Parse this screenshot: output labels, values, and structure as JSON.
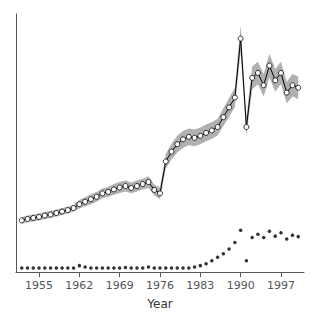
{
  "chart_data": {
    "type": "line",
    "xlabel": "Year",
    "x": [
      1952,
      1953,
      1954,
      1955,
      1956,
      1957,
      1958,
      1959,
      1960,
      1961,
      1962,
      1963,
      1964,
      1965,
      1966,
      1967,
      1968,
      1969,
      1970,
      1971,
      1972,
      1973,
      1974,
      1975,
      1976,
      1977,
      1978,
      1979,
      1980,
      1981,
      1982,
      1983,
      1984,
      1985,
      1986,
      1987,
      1988,
      1989,
      1990,
      1991,
      1992,
      1993,
      1994,
      1995,
      1996,
      1997,
      1998,
      1999,
      2000
    ],
    "xlim": [
      1951,
      2001
    ],
    "xticks": [
      1955,
      1962,
      1969,
      1976,
      1983,
      1990,
      1997
    ],
    "ylim": [
      -5,
      520
    ],
    "tick_labels": "x",
    "grid": false,
    "series": [
      {
        "type": "band",
        "color": "#b0b0b0",
        "lower": [
          93,
          96,
          98,
          100,
          103,
          105,
          108,
          111,
          114,
          118,
          124,
          129,
          133,
          138,
          145,
          148,
          152,
          156,
          159,
          155,
          159,
          163,
          166,
          151,
          143,
          205,
          224,
          238,
          248,
          253,
          251,
          255,
          261,
          266,
          273,
          292,
          311,
          330,
          443,
          271,
          367,
          377,
          352,
          391,
          362,
          377,
          338,
          352,
          347
        ],
        "upper": [
          107,
          110,
          112,
          114,
          117,
          119,
          122,
          125,
          128,
          132,
          142,
          147,
          153,
          158,
          165,
          168,
          174,
          178,
          181,
          177,
          181,
          185,
          190,
          173,
          167,
          235,
          256,
          272,
          282,
          287,
          285,
          289,
          295,
          300,
          307,
          328,
          349,
          370,
          497,
          309,
          413,
          423,
          398,
          439,
          408,
          423,
          382,
          398,
          393
        ]
      },
      {
        "type": "line",
        "color": "#000000",
        "marker": "circle",
        "values": [
          100,
          103,
          105,
          107,
          110,
          112,
          115,
          118,
          121,
          125,
          133,
          138,
          143,
          148,
          155,
          158,
          163,
          167,
          170,
          166,
          170,
          174,
          178,
          162,
          155,
          220,
          240,
          255,
          265,
          270,
          268,
          272,
          278,
          283,
          290,
          310,
          330,
          350,
          470,
          290,
          390,
          400,
          375,
          415,
          385,
          400,
          360,
          375,
          370
        ]
      },
      {
        "type": "scatter",
        "color": "#000000",
        "values": [
          3,
          3,
          3,
          3,
          3,
          3,
          3,
          3,
          3,
          3,
          8,
          5,
          3,
          3,
          3,
          3,
          3,
          3,
          4,
          3,
          3,
          3,
          5,
          3,
          3,
          3,
          3,
          3,
          3,
          3,
          5,
          8,
          12,
          18,
          25,
          32,
          42,
          55,
          80,
          18,
          65,
          72,
          65,
          78,
          68,
          75,
          62,
          70,
          67
        ]
      }
    ]
  }
}
